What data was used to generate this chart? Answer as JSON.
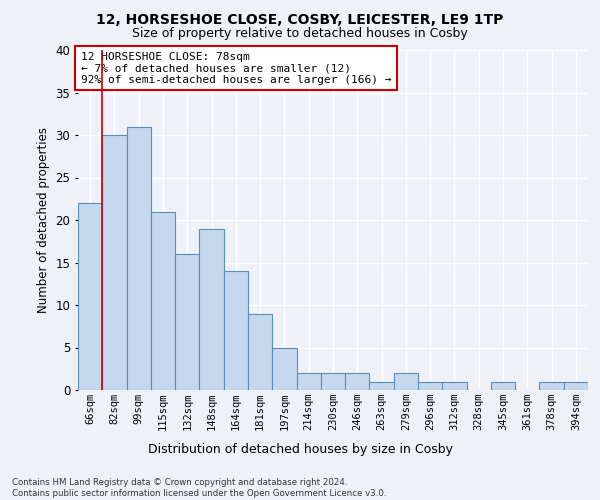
{
  "title1": "12, HORSESHOE CLOSE, COSBY, LEICESTER, LE9 1TP",
  "title2": "Size of property relative to detached houses in Cosby",
  "xlabel": "Distribution of detached houses by size in Cosby",
  "ylabel": "Number of detached properties",
  "categories": [
    "66sqm",
    "82sqm",
    "99sqm",
    "115sqm",
    "132sqm",
    "148sqm",
    "164sqm",
    "181sqm",
    "197sqm",
    "214sqm",
    "230sqm",
    "246sqm",
    "263sqm",
    "279sqm",
    "296sqm",
    "312sqm",
    "328sqm",
    "345sqm",
    "361sqm",
    "378sqm",
    "394sqm"
  ],
  "values": [
    22,
    30,
    31,
    21,
    16,
    19,
    14,
    9,
    5,
    2,
    2,
    2,
    1,
    2,
    1,
    1,
    0,
    1,
    0,
    1,
    1
  ],
  "bar_color": "#c5d8ed",
  "bar_edge_color": "#5b8db8",
  "ylim": [
    0,
    40
  ],
  "yticks": [
    0,
    5,
    10,
    15,
    20,
    25,
    30,
    35,
    40
  ],
  "annotation_box_text": "12 HORSESHOE CLOSE: 78sqm\n← 7% of detached houses are smaller (12)\n92% of semi-detached houses are larger (166) →",
  "annotation_box_color": "#ffffff",
  "annotation_box_edge_color": "#cc0000",
  "footer1": "Contains HM Land Registry data © Crown copyright and database right 2024.",
  "footer2": "Contains public sector information licensed under the Open Government Licence v3.0.",
  "bg_color": "#eef2f8",
  "plot_bg_color": "#eef2f8",
  "grid_color": "#ffffff",
  "red_line_x": 0.5
}
